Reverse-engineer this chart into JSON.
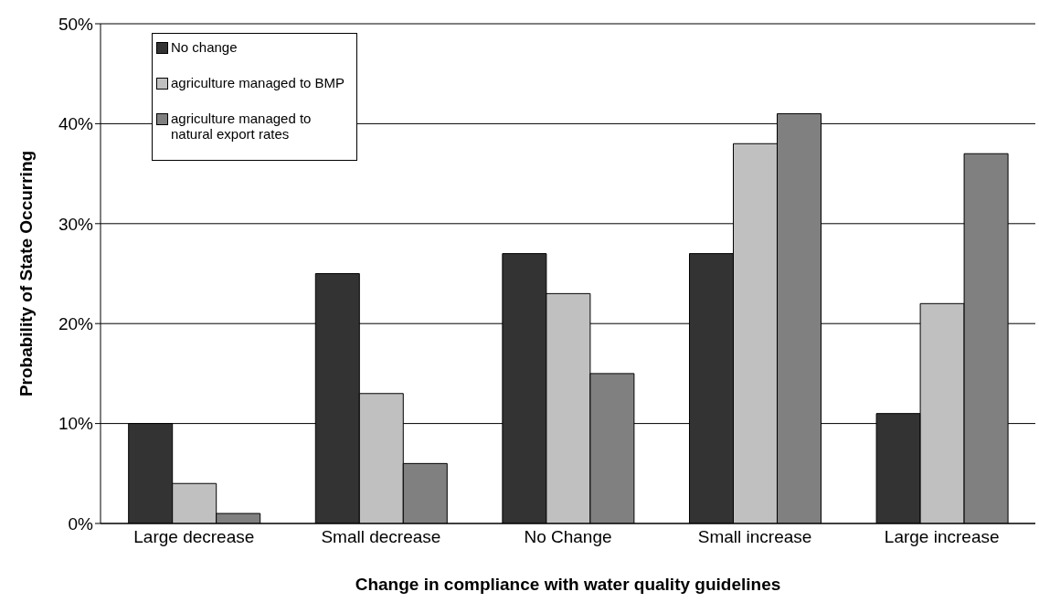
{
  "chart_data": {
    "type": "bar",
    "xlabel": "Change in compliance with water quality guidelines",
    "ylabel": "Probability of State Occurring",
    "categories": [
      "Large decrease",
      "Small decrease",
      "No Change",
      "Small increase",
      "Large increase"
    ],
    "series": [
      {
        "name": "No change",
        "color": "#333333",
        "values": [
          10,
          25,
          27,
          27,
          11
        ]
      },
      {
        "name": "agriculture managed to BMP",
        "color": "#c0c0c0",
        "values": [
          4,
          13,
          23,
          38,
          22
        ]
      },
      {
        "name": "agriculture managed to natural export rates",
        "color": "#808080",
        "values": [
          1,
          6,
          15,
          41,
          37
        ]
      }
    ],
    "ylim": [
      0,
      50
    ],
    "yticks": [
      {
        "value": 0,
        "label": "0%"
      },
      {
        "value": 10,
        "label": "10%"
      },
      {
        "value": 20,
        "label": "20%"
      },
      {
        "value": 30,
        "label": "30%"
      },
      {
        "value": 40,
        "label": "40%"
      },
      {
        "value": 50,
        "label": "50%"
      }
    ],
    "grid": "y",
    "legend": "top left"
  }
}
